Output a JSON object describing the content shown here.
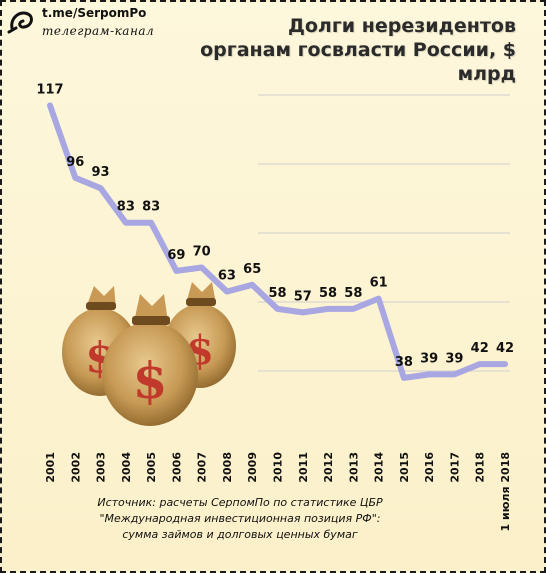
{
  "brand": {
    "link": "t.me/SerpomPo",
    "subtitle": "телеграм-канал"
  },
  "chart_data": {
    "type": "line",
    "title": "Долги нерезидентов органам госвласти России, $ млрд",
    "title_lines": [
      "Долги нерезидентов",
      "органам госвласти России, $ млрд"
    ],
    "categories": [
      "2001",
      "2002",
      "2003",
      "2004",
      "2005",
      "2006",
      "2007",
      "2008",
      "2009",
      "2010",
      "2011",
      "2012",
      "2013",
      "2014",
      "2015",
      "2016",
      "2017",
      "2018",
      "1 июля 2018"
    ],
    "values": [
      117,
      96,
      93,
      83,
      83,
      69,
      70,
      63,
      65,
      58,
      57,
      58,
      58,
      61,
      38,
      39,
      39,
      42,
      42
    ],
    "xlabel": "",
    "ylabel": "",
    "ylim": [
      20,
      120
    ],
    "grid": true,
    "series_color": "#a9a7e2",
    "source_lines": [
      "Источник: расчеты СерпомПо по статистике ЦБР",
      "\"Международная инвестиционная позиция РФ\":",
      "сумма займов и долговых ценных бумаг"
    ]
  }
}
